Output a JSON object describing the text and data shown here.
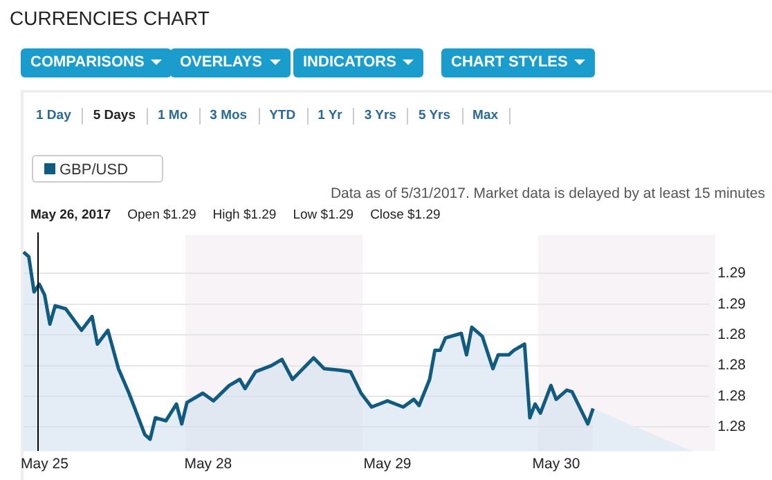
{
  "chart_data": {
    "type": "area",
    "title": "CURRENCIES CHART",
    "annotations": [
      "COMPARISONS",
      "OVERLAYS",
      "INDICATORS",
      "CHART STYLES",
      "1 Day",
      "5 Days",
      "1 Mo",
      "3 Mos",
      "YTD",
      "1 Yr",
      "3 Yrs",
      "5 Yrs",
      "Max",
      "Data as of 5/31/2017. Market data is delayed by at least 15 minutes",
      "May 26, 2017",
      "Open $1.29",
      "High $1.29",
      "Low $1.29",
      "Close $1.29"
    ],
    "categories": [
      null,
      null,
      null,
      null,
      "May 25",
      null,
      null,
      null,
      null,
      null,
      null,
      null,
      null,
      null,
      null,
      null,
      null,
      null,
      null,
      null,
      null,
      null,
      null,
      null,
      null,
      null,
      null,
      null,
      null,
      null,
      null,
      null,
      null,
      null,
      null,
      "May 28",
      null,
      null,
      null,
      null,
      null,
      null,
      null,
      null,
      null,
      null,
      null,
      null,
      null,
      null,
      null,
      null,
      null,
      null,
      null,
      null,
      null,
      null,
      null,
      null,
      null,
      null,
      null,
      null,
      null,
      null,
      null,
      null,
      null,
      "May 29",
      null,
      null,
      null,
      null,
      null,
      null,
      null,
      null,
      null,
      null,
      null,
      null,
      null,
      null,
      null,
      null,
      null,
      null,
      null,
      null,
      null,
      null,
      null,
      null,
      null,
      null,
      null,
      null,
      null,
      null,
      null,
      "May 30",
      null,
      null,
      null,
      null,
      null,
      null,
      null,
      null,
      null,
      null,
      null,
      null,
      null,
      null,
      null,
      null,
      null,
      null,
      null,
      null,
      null,
      null,
      null,
      null,
      null,
      null,
      null,
      null,
      null
    ],
    "series": [
      {
        "name": "GBP/USD",
        "color": "#125b80",
        "values": [
          1.2894,
          1.2891,
          1.2868,
          1.2873,
          1.2866,
          1.2847,
          1.2859,
          null,
          1.2857,
          null,
          null,
          1.2843,
          null,
          1.2852,
          1.2834,
          null,
          1.2843,
          null,
          1.2818,
          null,
          1.2802,
          1.2793,
          null,
          1.2775,
          1.2772,
          1.2786,
          null,
          1.2784,
          null,
          1.2795,
          1.2782,
          1.2796,
          null,
          null,
          1.2802,
          null,
          1.2797,
          null,
          null,
          1.2807,
          null,
          1.2811,
          1.2805,
          null,
          1.2816,
          null,
          null,
          1.282,
          null,
          1.2824,
          null,
          1.2811,
          null,
          null,
          null,
          1.2825,
          null,
          1.2818,
          null,
          null,
          1.2817,
          null,
          1.2816,
          null,
          1.2802,
          null,
          1.2793,
          null,
          null,
          1.2797,
          null,
          null,
          1.2793,
          null,
          1.2798,
          1.2794,
          null,
          1.2811,
          1.283,
          1.283,
          1.2838,
          null,
          null,
          1.2841,
          1.2827,
          1.2845,
          null,
          1.2839,
          null,
          1.2818,
          1.2827,
          null,
          1.2827,
          1.283,
          null,
          1.2834,
          1.2786,
          1.2795,
          1.2789,
          1.2798,
          1.2807,
          1.2798,
          null,
          1.2804,
          1.2803,
          null,
          null,
          1.2782,
          1.2792,
          null,
          null,
          null,
          null,
          null,
          null,
          null,
          null,
          null,
          null,
          null,
          null,
          null,
          null,
          null,
          null,
          null,
          null,
          null,
          null,
          null,
          null
        ]
      },
      {
        "color": "#e4edf6",
        "values": [
          null,
          null,
          null,
          null,
          null,
          null,
          null,
          null,
          null,
          null,
          null,
          null,
          null,
          null,
          null,
          null,
          null,
          null,
          null,
          null,
          null,
          null,
          null,
          null,
          null,
          null,
          null,
          null,
          null,
          null,
          null,
          null,
          null,
          null,
          null,
          null,
          null,
          null,
          null,
          null,
          null,
          null,
          null,
          null,
          null,
          null,
          null,
          null,
          null,
          null,
          null,
          null,
          null,
          null,
          null,
          null,
          null,
          null,
          null,
          null,
          null,
          null,
          null,
          null,
          null,
          null,
          null,
          null,
          null,
          null,
          null,
          null,
          null,
          null,
          null,
          null,
          null,
          null,
          null,
          null,
          null,
          null,
          null,
          null,
          null,
          null,
          null,
          null,
          null,
          null,
          null,
          null,
          null,
          null,
          null,
          null,
          null,
          null,
          null,
          null,
          null,
          null,
          null,
          null,
          null,
          null,
          null,
          null,
          1.2792,
          null,
          null,
          null,
          null,
          null,
          null,
          null,
          null,
          null,
          null,
          null,
          null,
          null,
          null,
          null,
          null,
          null,
          null,
          1.2764,
          null,
          null,
          null
        ]
      }
    ],
    "ylim": [
      1.2764,
      1.2905
    ],
    "yticks": [
      {
        "value": 1.288,
        "label": "1.29"
      },
      {
        "value": 1.286,
        "label": "1.29"
      },
      {
        "value": 1.284,
        "label": "1.28"
      },
      {
        "value": 1.282,
        "label": "1.28"
      },
      {
        "value": 1.28,
        "label": "1.28"
      },
      {
        "value": 1.278,
        "label": "1.28"
      }
    ],
    "grid": "y",
    "legend": "top left",
    "marker": "none",
    "line_style": "solid"
  }
}
